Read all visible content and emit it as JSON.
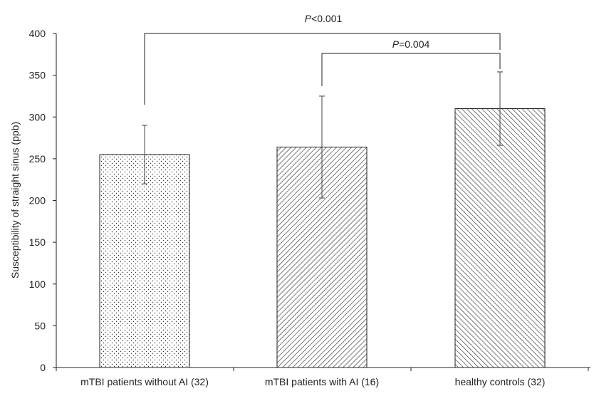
{
  "chart_data": {
    "type": "bar",
    "title": "",
    "xlabel": "",
    "ylabel": "Susceptibility of straight sinus (ppb)",
    "ylim": [
      0,
      400
    ],
    "yticks": [
      0,
      50,
      100,
      150,
      200,
      250,
      300,
      350,
      400
    ],
    "grid": false,
    "categories": [
      "mTBI patients without AI (32)",
      "mTBI patients with AI (16)",
      "healthy controls (32)"
    ],
    "values": [
      255,
      264,
      310
    ],
    "errors": [
      35,
      61,
      44
    ],
    "patterns": [
      "dots",
      "diagonal-up",
      "diagonal-down"
    ],
    "significance": [
      {
        "from": 0,
        "to": 2,
        "p_symbol": "P",
        "p_rest": "<0.001"
      },
      {
        "from": 1,
        "to": 2,
        "p_symbol": "P",
        "p_rest": "=0.004"
      }
    ],
    "colors": {
      "bar_edge": "#222222",
      "pattern": "#333333",
      "axis": "#222222",
      "error": "#444444"
    }
  }
}
